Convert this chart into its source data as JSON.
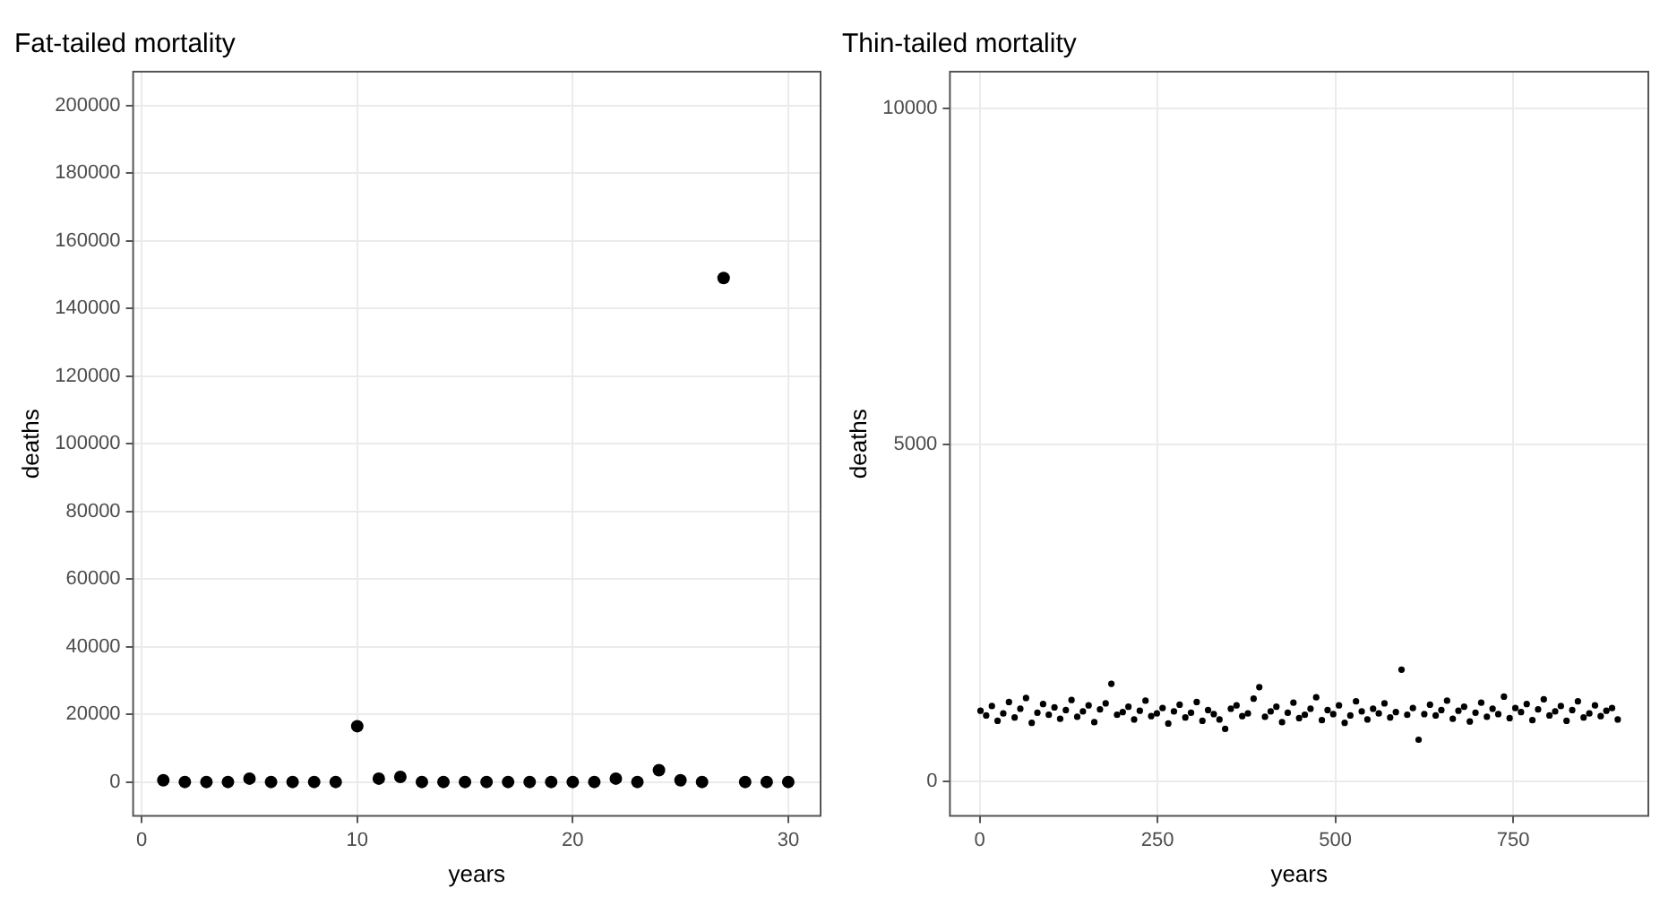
{
  "chart_data": [
    {
      "type": "scatter",
      "title": "Fat-tailed mortality",
      "xlabel": "years",
      "ylabel": "deaths",
      "marker": "circle",
      "grid": true,
      "xlim": [
        -0.4,
        31.5
      ],
      "xticks": [
        0,
        10,
        20,
        30
      ],
      "ylim": [
        -10000,
        210000
      ],
      "yticks": [
        0,
        20000,
        40000,
        60000,
        80000,
        100000,
        120000,
        140000,
        160000,
        180000,
        200000
      ],
      "x": [
        1,
        2,
        3,
        4,
        5,
        6,
        7,
        8,
        9,
        10,
        11,
        12,
        13,
        14,
        15,
        16,
        17,
        18,
        19,
        20,
        21,
        22,
        23,
        24,
        25,
        26,
        27,
        28,
        29,
        30
      ],
      "series": [
        {
          "color": "#000000",
          "values": [
            500,
            0,
            0,
            0,
            1000,
            0,
            0,
            0,
            0,
            16500,
            1000,
            1500,
            0,
            0,
            0,
            0,
            0,
            0,
            0,
            0,
            0,
            1000,
            0,
            3500,
            500,
            0,
            149000,
            0,
            0,
            0
          ]
        }
      ]
    },
    {
      "type": "scatter",
      "title": "Thin-tailed mortality",
      "xlabel": "years",
      "ylabel": "deaths",
      "marker": "circle",
      "grid": true,
      "xlim": [
        -42,
        940
      ],
      "xticks": [
        0,
        250,
        500,
        750
      ],
      "ylim": [
        -510,
        10540
      ],
      "yticks": [
        0,
        5000,
        10000
      ],
      "x": [
        1,
        9,
        17,
        25,
        33,
        41,
        49,
        57,
        65,
        73,
        81,
        89,
        97,
        105,
        113,
        121,
        129,
        137,
        145,
        153,
        161,
        169,
        177,
        185,
        193,
        201,
        209,
        217,
        225,
        233,
        241,
        249,
        257,
        265,
        273,
        281,
        289,
        297,
        305,
        313,
        321,
        329,
        337,
        345,
        353,
        361,
        369,
        377,
        385,
        393,
        401,
        409,
        417,
        425,
        433,
        441,
        449,
        457,
        465,
        473,
        481,
        489,
        497,
        505,
        513,
        521,
        529,
        537,
        545,
        553,
        561,
        569,
        577,
        585,
        593,
        601,
        609,
        617,
        625,
        633,
        641,
        649,
        657,
        665,
        673,
        681,
        689,
        697,
        705,
        713,
        721,
        729,
        737,
        745,
        753,
        761,
        769,
        777,
        785,
        793,
        801,
        809,
        817,
        825,
        833,
        841,
        849,
        857,
        865,
        873,
        881,
        889,
        897
      ],
      "series": [
        {
          "color": "#000000",
          "values": [
            1050,
            980,
            1120,
            900,
            1010,
            1180,
            950,
            1080,
            1240,
            870,
            1020,
            1150,
            990,
            1100,
            930,
            1060,
            1210,
            960,
            1040,
            1130,
            880,
            1070,
            1160,
            1450,
            990,
            1030,
            1110,
            920,
            1050,
            1200,
            970,
            1010,
            1090,
            860,
            1040,
            1140,
            950,
            1020,
            1180,
            900,
            1060,
            1000,
            920,
            780,
            1080,
            1130,
            970,
            1010,
            1230,
            1400,
            960,
            1040,
            1110,
            880,
            1020,
            1170,
            940,
            990,
            1080,
            1250,
            910,
            1060,
            1000,
            1130,
            870,
            980,
            1190,
            1040,
            920,
            1080,
            1010,
            1160,
            950,
            1030,
            1660,
            990,
            1090,
            620,
            1000,
            1140,
            980,
            1060,
            1200,
            930,
            1050,
            1110,
            890,
            1020,
            1170,
            960,
            1080,
            1000,
            1260,
            940,
            1090,
            1030,
            1150,
            910,
            1070,
            1220,
            980,
            1040,
            1120,
            900,
            1060,
            1190,
            950,
            1010,
            1130,
            970,
            1050,
            1090,
            920
          ]
        }
      ]
    }
  ]
}
